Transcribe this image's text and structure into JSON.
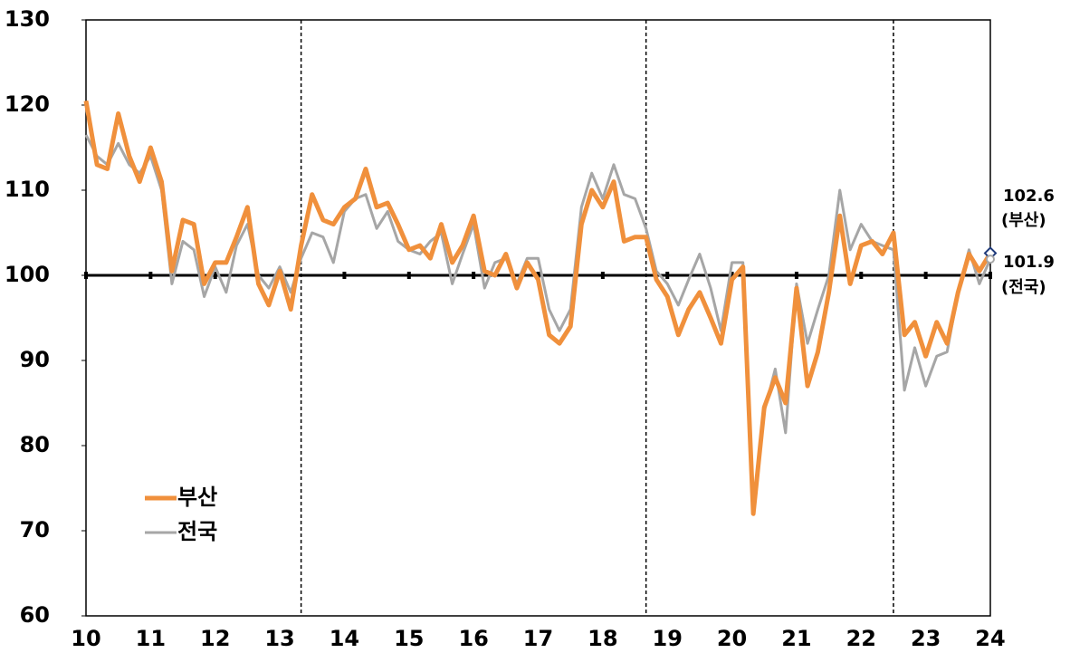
{
  "chart_data": {
    "type": "line",
    "xlim": [
      10,
      24
    ],
    "xticks": [
      10,
      11,
      12,
      13,
      14,
      15,
      16,
      17,
      18,
      19,
      20,
      21,
      22,
      23,
      24
    ],
    "ylim": [
      60,
      130
    ],
    "yticks": [
      60,
      70,
      80,
      90,
      100,
      110,
      120,
      130
    ],
    "reference_line": 100,
    "vlines": [
      13.33,
      18.67,
      22.5
    ],
    "legend": "lower left",
    "x": [
      10,
      10.17,
      10.33,
      10.5,
      10.67,
      10.83,
      11,
      11.17,
      11.33,
      11.5,
      11.67,
      11.83,
      12,
      12.17,
      12.33,
      12.5,
      12.67,
      12.83,
      13,
      13.17,
      13.33,
      13.5,
      13.67,
      13.83,
      14,
      14.17,
      14.33,
      14.5,
      14.67,
      14.83,
      15,
      15.17,
      15.33,
      15.5,
      15.67,
      15.83,
      16,
      16.17,
      16.33,
      16.5,
      16.67,
      16.83,
      17,
      17.17,
      17.33,
      17.5,
      17.67,
      17.83,
      18,
      18.17,
      18.33,
      18.5,
      18.67,
      18.83,
      19,
      19.17,
      19.33,
      19.5,
      19.67,
      19.83,
      20,
      20.17,
      20.33,
      20.5,
      20.67,
      20.83,
      21,
      21.17,
      21.33,
      21.5,
      21.67,
      21.83,
      22,
      22.17,
      22.33,
      22.5,
      22.67,
      22.83,
      23,
      23.17,
      23.33,
      23.5,
      23.67,
      23.83,
      24
    ],
    "series": [
      {
        "name": "부산",
        "color": "#f0903c",
        "width": 5,
        "values": [
          120.5,
          113,
          112.5,
          119,
          114,
          111,
          115,
          111,
          100.5,
          106.5,
          106,
          99,
          101.5,
          101.5,
          104.5,
          108,
          99,
          96.5,
          100.5,
          96,
          103.5,
          109.5,
          106.5,
          106,
          108,
          109,
          112.5,
          108,
          108.5,
          106,
          103,
          103.5,
          102,
          106,
          101.5,
          103.5,
          107,
          100.5,
          100,
          102.5,
          98.5,
          101.5,
          99.5,
          93,
          92,
          94,
          106,
          110,
          108,
          111,
          104,
          104.5,
          104.5,
          99.5,
          97.5,
          93,
          96,
          98,
          95,
          92,
          99.5,
          101,
          72,
          84.5,
          88,
          85,
          98.5,
          87,
          91,
          98,
          107,
          99,
          103.5,
          104,
          102.5,
          105,
          93,
          94.5,
          90.5,
          94.5,
          92,
          98,
          102.5,
          100.5,
          102.6
        ]
      },
      {
        "name": "전국",
        "color": "#a6a6a6",
        "width": 3,
        "values": [
          116.5,
          114,
          113,
          115.5,
          113,
          112,
          114,
          110,
          99,
          104,
          103,
          97.5,
          101,
          98,
          103.5,
          106,
          100,
          98.5,
          101,
          98,
          102,
          105,
          104.5,
          101.5,
          107.5,
          109,
          109.5,
          105.5,
          107.5,
          104,
          103,
          102.5,
          104,
          105,
          99,
          102.5,
          106,
          98.5,
          101.5,
          102,
          99,
          102,
          102,
          96,
          93.5,
          96,
          108,
          112,
          109,
          113,
          109.5,
          109,
          105.5,
          100.5,
          99,
          96.5,
          99.5,
          102.5,
          98.5,
          93.5,
          101.5,
          101.5,
          73,
          84,
          89,
          81.5,
          99,
          92,
          96,
          100,
          110,
          103,
          106,
          104,
          103.5,
          103,
          86.5,
          91.5,
          87,
          90.5,
          91,
          98,
          103,
          99,
          101.9
        ]
      }
    ],
    "annotations": [
      [
        "102.6",
        "(부산)"
      ],
      [
        "101.9",
        "(전국)"
      ]
    ]
  }
}
